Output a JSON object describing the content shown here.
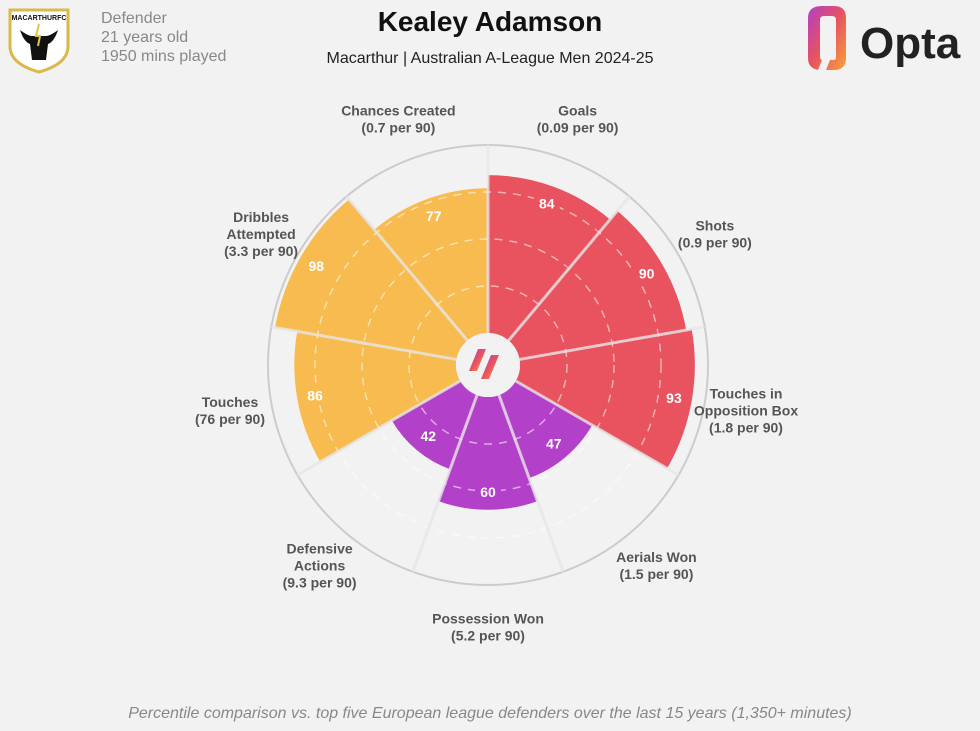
{
  "header": {
    "position": "Defender",
    "age": "21 years old",
    "minutes": "1950 mins played",
    "title": "Kealey Adamson",
    "subtitle": "Macarthur | Australian A-League Men 2024-25",
    "club_logo_text": "MACARTHURFC",
    "brand": "Opta"
  },
  "footer": "Percentile comparison vs. top five European league defenders over the last 15 years (1,350+ minutes)",
  "colors": {
    "attacking": "#e9525f",
    "possession": "#f7bb50",
    "defending": "#b340c9",
    "background": "#f2f2f2"
  },
  "chart_data": {
    "type": "pizza",
    "rlim": [
      0,
      100
    ],
    "slices": [
      {
        "label": [
          "Goals",
          "(0.09 per 90)"
        ],
        "value": 84,
        "group": "attacking"
      },
      {
        "label": [
          "Shots",
          "(0.9 per 90)"
        ],
        "value": 90,
        "group": "attacking"
      },
      {
        "label": [
          "Touches in",
          "Opposition Box",
          "(1.8 per 90)"
        ],
        "value": 93,
        "group": "attacking"
      },
      {
        "label": [
          "Aerials Won",
          "(1.5 per 90)"
        ],
        "value": 47,
        "group": "defending"
      },
      {
        "label": [
          "Possession Won",
          "(5.2 per 90)"
        ],
        "value": 60,
        "group": "defending"
      },
      {
        "label": [
          "Defensive",
          "Actions",
          "(9.3 per 90)"
        ],
        "value": 42,
        "group": "defending"
      },
      {
        "label": [
          "Touches",
          "(76 per 90)"
        ],
        "value": 86,
        "group": "possession"
      },
      {
        "label": [
          "Dribbles",
          "Attempted",
          "(3.3 per 90)"
        ],
        "value": 98,
        "group": "possession"
      },
      {
        "label": [
          "Chances Created",
          "(0.7 per 90)"
        ],
        "value": 77,
        "group": "possession"
      }
    ]
  }
}
